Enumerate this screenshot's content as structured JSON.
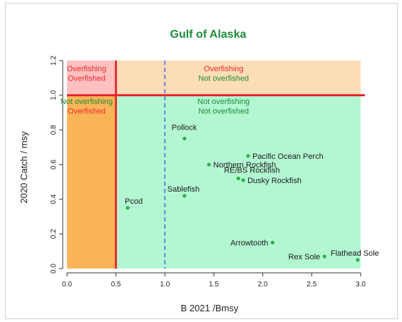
{
  "chart_data": {
    "type": "scatter",
    "title": "Gulf of Alaska",
    "xlabel": "B 2021 /Bmsy",
    "ylabel": "2020 Catch / msy",
    "xlim": [
      0,
      3.0
    ],
    "ylim": [
      0,
      1.2
    ],
    "plot_xmax": 3.0,
    "plot_ymax": 1.2,
    "x_ticks": [
      0.0,
      0.5,
      1.0,
      1.5,
      2.0,
      2.5,
      3.0
    ],
    "x_tick_labels": [
      "0.0",
      "0.5",
      "1.0",
      "1.5",
      "2.0",
      "2.5",
      "3.0"
    ],
    "y_ticks": [
      0.0,
      0.2,
      0.4,
      0.6,
      0.8,
      1.0,
      1.2
    ],
    "y_tick_labels": [
      "0.0",
      "0.2",
      "0.4",
      "0.6",
      "0.8",
      "1.0",
      "1.2"
    ],
    "grid": false,
    "colors": {
      "title": "#1e8c3a",
      "overfishing_overfished": "#ffc0c0",
      "overfishing_not_overfished": "#fdddb8",
      "not_overfishing_overfished": "#f9b458",
      "not_overfishing_not_overfished": "#b3f7d2",
      "threshold_line": "#e8212a",
      "reference_line": "#4c6fe0",
      "point": "#2fae4a",
      "red_text": "#ee2a2a",
      "green_text": "#1f8a38",
      "label_text": "#1a1a1a"
    },
    "zones": [
      {
        "key": "oo",
        "x": [
          0,
          0.5
        ],
        "y": [
          1.0,
          1.2
        ],
        "color_key": "overfishing_overfished"
      },
      {
        "key": "on",
        "x": [
          0.5,
          3.0
        ],
        "y": [
          1.0,
          1.2
        ],
        "color_key": "overfishing_not_overfished"
      },
      {
        "key": "no",
        "x": [
          0,
          0.5
        ],
        "y": [
          0,
          1.0
        ],
        "color_key": "not_overfishing_overfished"
      },
      {
        "key": "nn",
        "x": [
          0.5,
          3.0
        ],
        "y": [
          0,
          1.0
        ],
        "color_key": "not_overfishing_not_overfished"
      }
    ],
    "zone_labels": [
      {
        "key": "oo_line1",
        "text": "Overfishing",
        "x": 0.2,
        "y": 1.155,
        "color_key": "red_text"
      },
      {
        "key": "oo_line2",
        "text": "Overfished",
        "x": 0.2,
        "y": 1.1,
        "color_key": "red_text"
      },
      {
        "key": "on_line1",
        "text": "Overfishing",
        "x": 1.6,
        "y": 1.155,
        "color_key": "red_text"
      },
      {
        "key": "on_line2",
        "text": "Not overfished",
        "x": 1.6,
        "y": 1.1,
        "color_key": "green_text"
      },
      {
        "key": "no_line1",
        "text": "Not overfishing",
        "x": 0.2,
        "y": 0.965,
        "color_key": "green_text"
      },
      {
        "key": "no_line2",
        "text": "Overfished",
        "x": 0.2,
        "y": 0.91,
        "color_key": "red_text"
      },
      {
        "key": "nn_line1",
        "text": "Not overfishing",
        "x": 1.6,
        "y": 0.965,
        "color_key": "green_text"
      },
      {
        "key": "nn_line2",
        "text": "Not overfished",
        "x": 1.6,
        "y": 0.91,
        "color_key": "green_text"
      }
    ],
    "threshold_lines": [
      {
        "orientation": "vertical",
        "value": 0.5,
        "style": "solid",
        "color_key": "threshold_line"
      },
      {
        "orientation": "horizontal",
        "value": 1.0,
        "style": "solid",
        "color_key": "threshold_line"
      },
      {
        "orientation": "vertical",
        "value": 1.0,
        "style": "dashed",
        "color_key": "reference_line"
      }
    ],
    "points": [
      {
        "name": "Pollock",
        "x": 1.2,
        "y": 0.75
      },
      {
        "name": "Pacific Ocean Perch",
        "x": 1.85,
        "y": 0.65
      },
      {
        "name": "Northern Rockfish",
        "x": 1.45,
        "y": 0.6
      },
      {
        "name": "RE/BS Rockfish",
        "x": 1.75,
        "y": 0.52
      },
      {
        "name": "Dusky Rockfish",
        "x": 1.8,
        "y": 0.51
      },
      {
        "name": "Sablefish",
        "x": 1.2,
        "y": 0.42
      },
      {
        "name": "Pcod",
        "x": 0.62,
        "y": 0.35
      },
      {
        "name": "Arrowtooth",
        "x": 2.1,
        "y": 0.15
      },
      {
        "name": "Rex Sole",
        "x": 2.63,
        "y": 0.07
      },
      {
        "name": "Flathead Sole",
        "x": 2.97,
        "y": 0.05
      }
    ]
  }
}
